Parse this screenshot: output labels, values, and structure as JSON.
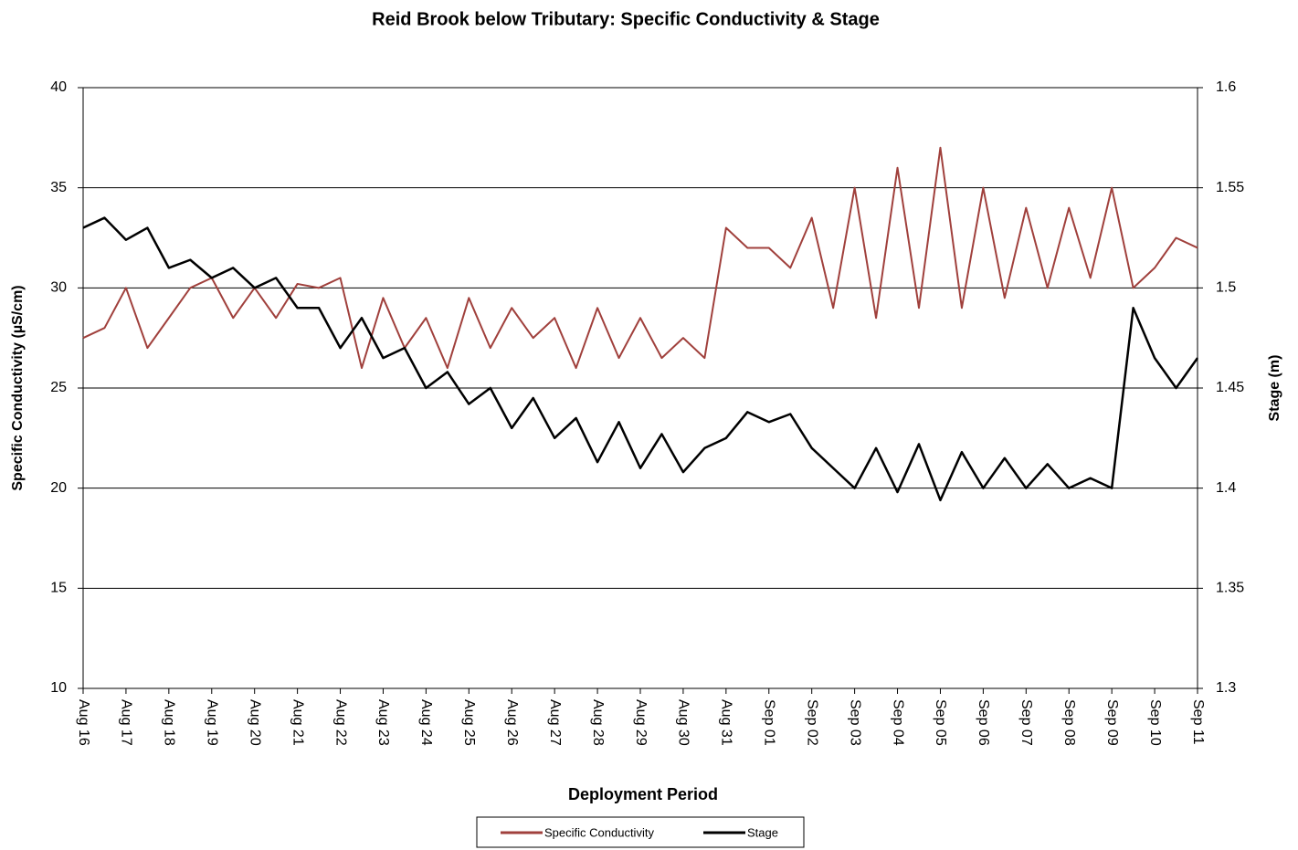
{
  "chart_data": {
    "type": "line",
    "title": "Reid Brook below Tributary: Specific Conductivity & Stage",
    "x_label": "Deployment Period",
    "y_label": "Specific Conductivity  (µS/cm)",
    "y2_label": "Stage (m)",
    "grid": true,
    "legend": "bottom",
    "xlim": [
      0,
      26
    ],
    "xticks": [
      {
        "value": 0,
        "label": "Aug 16"
      },
      {
        "value": 1,
        "label": "Aug 17"
      },
      {
        "value": 2,
        "label": "Aug 18"
      },
      {
        "value": 3,
        "label": "Aug 19"
      },
      {
        "value": 4,
        "label": "Aug 20"
      },
      {
        "value": 5,
        "label": "Aug 21"
      },
      {
        "value": 6,
        "label": "Aug 22"
      },
      {
        "value": 7,
        "label": "Aug 23"
      },
      {
        "value": 8,
        "label": "Aug 24"
      },
      {
        "value": 9,
        "label": "Aug 25"
      },
      {
        "value": 10,
        "label": "Aug 26"
      },
      {
        "value": 11,
        "label": "Aug 27"
      },
      {
        "value": 12,
        "label": "Aug 28"
      },
      {
        "value": 13,
        "label": "Aug 29"
      },
      {
        "value": 14,
        "label": "Aug 30"
      },
      {
        "value": 15,
        "label": "Aug 31"
      },
      {
        "value": 16,
        "label": "Sep 01"
      },
      {
        "value": 17,
        "label": "Sep 02"
      },
      {
        "value": 18,
        "label": "Sep 03"
      },
      {
        "value": 19,
        "label": "Sep 04"
      },
      {
        "value": 20,
        "label": "Sep 05"
      },
      {
        "value": 21,
        "label": "Sep 06"
      },
      {
        "value": 22,
        "label": "Sep 07"
      },
      {
        "value": 23,
        "label": "Sep 08"
      },
      {
        "value": 24,
        "label": "Sep 09"
      },
      {
        "value": 25,
        "label": "Sep 10"
      },
      {
        "value": 26,
        "label": "Sep 11"
      }
    ],
    "ylim": [
      10,
      40
    ],
    "yticks": [
      10,
      15,
      20,
      25,
      30,
      35,
      40
    ],
    "y2lim": [
      1.3,
      1.6
    ],
    "y2ticks": [
      1.3,
      1.35,
      1.4,
      1.45,
      1.5,
      1.55,
      1.6
    ],
    "x": [
      0,
      0.5,
      1,
      1.5,
      2,
      2.5,
      3,
      3.5,
      4,
      4.5,
      5,
      5.5,
      6,
      6.5,
      7,
      7.5,
      8,
      8.5,
      9,
      9.5,
      10,
      10.5,
      11,
      11.5,
      12,
      12.5,
      13,
      13.5,
      14,
      14.5,
      15,
      15.5,
      16,
      16.5,
      17,
      17.5,
      18,
      18.5,
      19,
      19.5,
      20,
      20.5,
      21,
      21.5,
      22,
      22.5,
      23,
      23.5,
      24,
      24.5,
      25,
      25.5,
      26
    ],
    "series": [
      {
        "name": "Specific Conductivity",
        "color": "#a0403c",
        "values": [
          27.5,
          28,
          30,
          27,
          28.5,
          30,
          30.5,
          28.5,
          30,
          28.5,
          30.2,
          30,
          30.5,
          26,
          29.5,
          27,
          28.5,
          26,
          29.5,
          27,
          29,
          27.5,
          28.5,
          26,
          29,
          26.5,
          28.5,
          26.5,
          27.5,
          26.5,
          33,
          32,
          32,
          31,
          33.5,
          29,
          35,
          28.5,
          36,
          29,
          37,
          29,
          35,
          29.5,
          34,
          30,
          34,
          30.5,
          35,
          30,
          31,
          32.5,
          32
        ]
      },
      {
        "name": "Stage",
        "color": "#000000",
        "axis": "y2",
        "values": [
          1.53,
          1.535,
          1.524,
          1.53,
          1.51,
          1.514,
          1.505,
          1.51,
          1.5,
          1.505,
          1.49,
          1.49,
          1.47,
          1.485,
          1.465,
          1.47,
          1.45,
          1.458,
          1.442,
          1.45,
          1.43,
          1.445,
          1.425,
          1.435,
          1.413,
          1.433,
          1.41,
          1.427,
          1.408,
          1.42,
          1.425,
          1.438,
          1.433,
          1.437,
          1.42,
          1.41,
          1.4,
          1.42,
          1.398,
          1.422,
          1.394,
          1.418,
          1.4,
          1.415,
          1.4,
          1.412,
          1.4,
          1.405,
          1.4,
          1.49,
          1.465,
          1.45,
          1.465
        ]
      }
    ]
  }
}
